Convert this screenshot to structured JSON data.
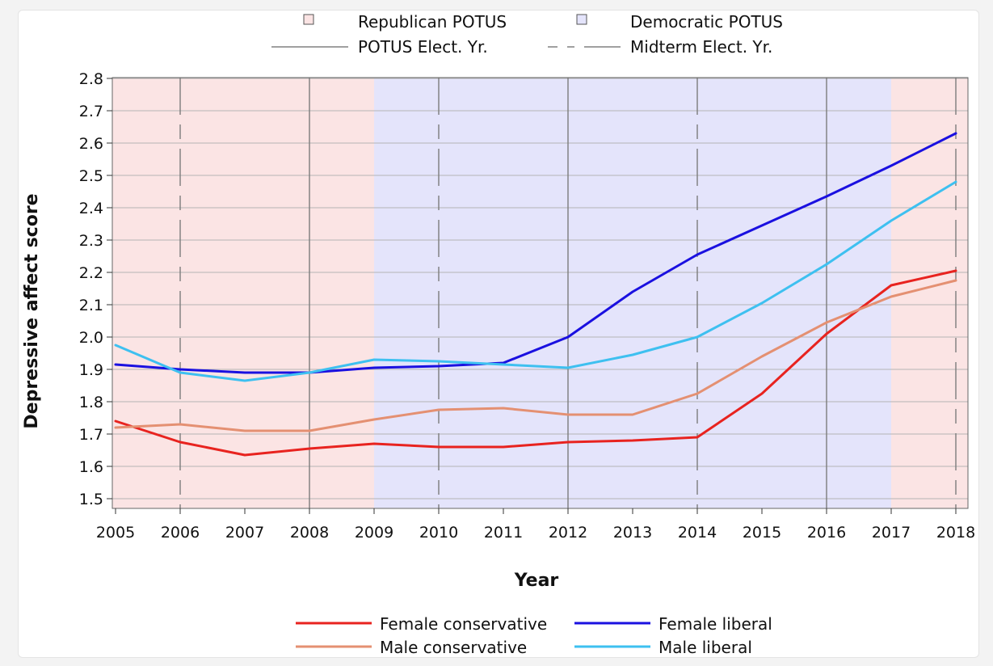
{
  "chart_data": {
    "type": "line",
    "title": "",
    "xlabel": "Year",
    "ylabel": "Depressive affect score",
    "xlim": [
      2005,
      2018
    ],
    "ylim": [
      1.5,
      2.8
    ],
    "x": [
      2005,
      2006,
      2007,
      2008,
      2009,
      2010,
      2011,
      2012,
      2013,
      2014,
      2015,
      2016,
      2017,
      2018
    ],
    "xticks": [
      "2005",
      "2006",
      "2007",
      "2008",
      "2009",
      "2010",
      "2011",
      "2012",
      "2013",
      "2014",
      "2015",
      "2016",
      "2017",
      "2018"
    ],
    "yticks": [
      "1.5",
      "1.6",
      "1.7",
      "1.8",
      "1.9",
      "2.0",
      "2.1",
      "2.2",
      "2.3",
      "2.4",
      "2.5",
      "2.6",
      "2.7",
      "2.8"
    ],
    "grid": true,
    "legend_position": "bottom",
    "series": [
      {
        "name": "Female conservative",
        "color": "#e8231f",
        "values": [
          1.74,
          1.675,
          1.635,
          1.655,
          1.67,
          1.66,
          1.66,
          1.675,
          1.68,
          1.69,
          1.825,
          2.01,
          2.16,
          2.205
        ]
      },
      {
        "name": "Female liberal",
        "color": "#1a10e0",
        "values": [
          1.915,
          1.9,
          1.89,
          1.89,
          1.905,
          1.91,
          1.92,
          2.0,
          2.14,
          2.255,
          2.345,
          2.435,
          2.53,
          2.63
        ]
      },
      {
        "name": "Male conservative",
        "color": "#e49072",
        "values": [
          1.72,
          1.73,
          1.71,
          1.71,
          1.745,
          1.775,
          1.78,
          1.76,
          1.76,
          1.825,
          1.94,
          2.045,
          2.125,
          2.175
        ]
      },
      {
        "name": "Male liberal",
        "color": "#3ec0f0",
        "values": [
          1.975,
          1.89,
          1.865,
          1.89,
          1.93,
          1.925,
          1.915,
          1.905,
          1.945,
          2.0,
          2.105,
          2.225,
          2.36,
          2.48
        ]
      }
    ],
    "bands": [
      {
        "from": 2005,
        "to": 2009,
        "party": "Republican POTUS",
        "color": "#fbe4e4"
      },
      {
        "from": 2009,
        "to": 2017,
        "party": "Democratic POTUS",
        "color": "#e4e4fb"
      },
      {
        "from": 2017,
        "to": 2018,
        "party": "Republican POTUS",
        "color": "#fbe4e4"
      }
    ],
    "election_lines": {
      "potus_years": [
        2008,
        2012,
        2016
      ],
      "midterm_years": [
        2006,
        2010,
        2014,
        2018
      ]
    },
    "legend_top": {
      "republican": "Republican POTUS",
      "democratic": "Democratic POTUS",
      "potus_elect": "POTUS Elect. Yr.",
      "midterm_elect": "Midterm Elect. Yr."
    }
  }
}
